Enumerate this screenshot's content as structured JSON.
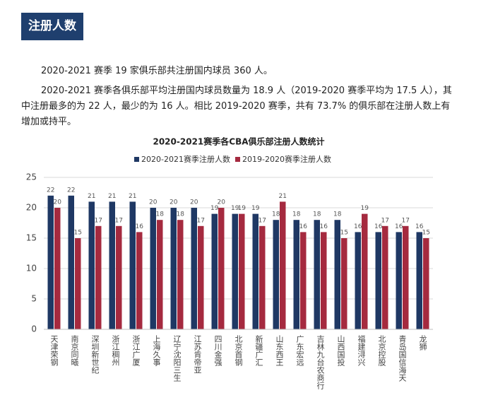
{
  "header": {
    "title": "注册人数"
  },
  "paragraphs": [
    "2020-2021 赛季 19 家俱乐部共注册国内球员 360 人。",
    "2020-2021 赛季各俱乐部平均注册国内球员数量为 18.9 人（2019-2020 赛季平均为 17.5 人），其中注册最多的为 22 人，最少的为 16 人。相比 2019-2020 赛季，共有 73.7% 的俱乐部在注册人数上有增加或持平。"
  ],
  "chart_data": {
    "type": "bar",
    "title": "2020-2021赛季各CBA俱乐部注册人数统计",
    "categories": [
      "天津荣钢",
      "南京同曦",
      "深圳新世纪",
      "浙江稠州",
      "浙江广厦",
      "上海久事",
      "辽宁沈阳三生",
      "江苏肯帝亚",
      "四川金强",
      "北京首钢",
      "新疆广汇",
      "山东西王",
      "广东宏远",
      "吉林九台农商行",
      "山西国投",
      "福建浔兴",
      "北京控股",
      "青岛国信海天",
      "龙狮"
    ],
    "series": [
      {
        "name": "2020-2021赛季注册人数",
        "color": "#1f3864",
        "values": [
          22,
          22,
          21,
          21,
          21,
          20,
          20,
          20,
          19,
          19,
          19,
          18,
          18,
          18,
          18,
          16,
          16,
          16,
          16
        ]
      },
      {
        "name": "2019-2020赛季注册人数",
        "color": "#a52a3f",
        "values": [
          20,
          15,
          17,
          17,
          16,
          18,
          18,
          17,
          20,
          19,
          17,
          21,
          16,
          16,
          15,
          19,
          17,
          17,
          15
        ]
      }
    ],
    "ylim": [
      0,
      25
    ],
    "yticks": [
      0,
      5,
      10,
      15,
      20,
      25
    ],
    "grid": true,
    "legend": "top"
  }
}
